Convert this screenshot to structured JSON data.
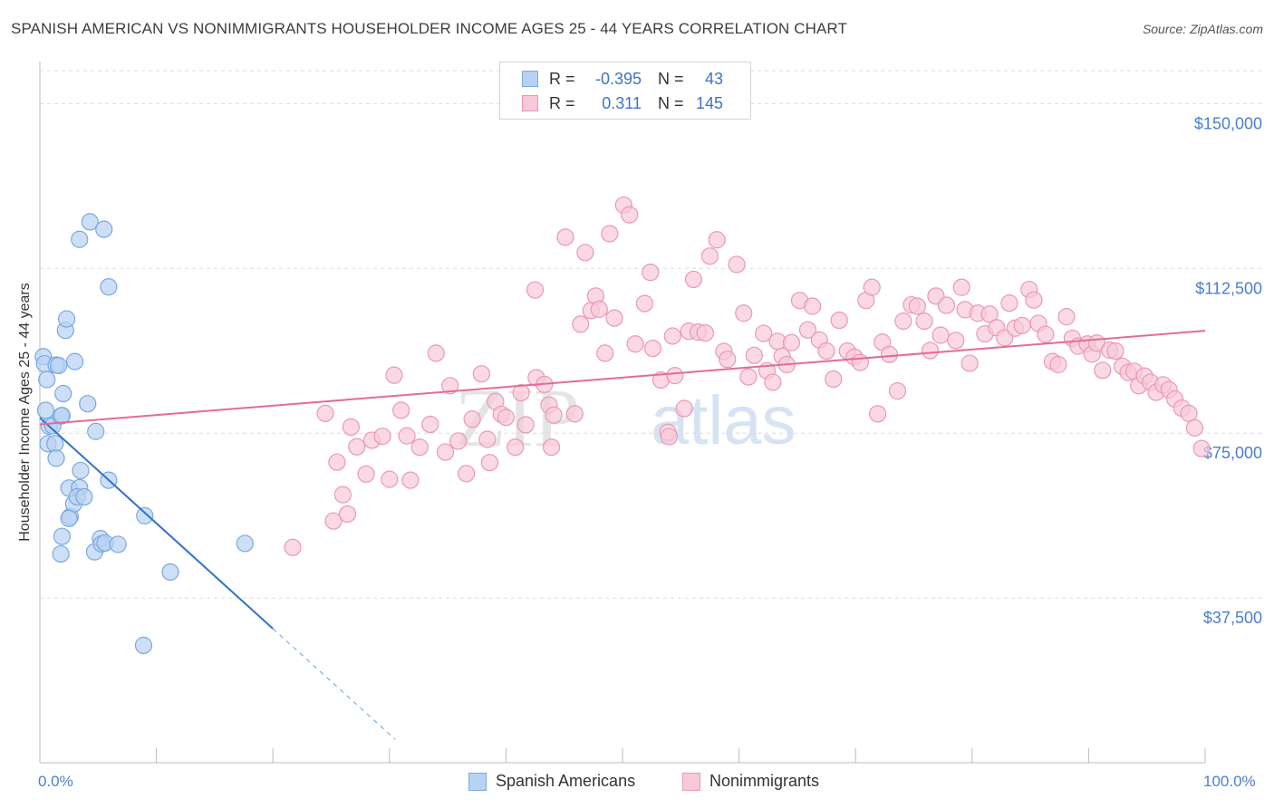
{
  "title": "SPANISH AMERICAN VS NONIMMIGRANTS HOUSEHOLDER INCOME AGES 25 - 44 YEARS CORRELATION CHART",
  "source": "Source: ZipAtlas.com",
  "watermark": {
    "zip": "ZIP",
    "atlas": "atlas"
  },
  "colors": {
    "blue_fill": "#b8d2f2",
    "blue_stroke": "#7aa8e0",
    "blue_line": "#2f72d0",
    "pink_fill": "#f8c9d8",
    "pink_stroke": "#ea98b4",
    "pink_line": "#e46b94",
    "axis_label": "#4a7fd0",
    "grid": "#dcdcdc"
  },
  "legend_top": [
    {
      "label": "R =",
      "r": "-0.395",
      "n_label": "N =",
      "n": "43",
      "series": "blue"
    },
    {
      "label": "R =",
      "r": "0.311",
      "n_label": "N =",
      "n": "145",
      "series": "pink"
    }
  ],
  "legend_bottom": [
    {
      "label": "Spanish Americans",
      "series": "blue"
    },
    {
      "label": "Nonimmigrants",
      "series": "pink"
    }
  ],
  "chart_data": {
    "type": "scatter",
    "title": "SPANISH AMERICAN VS NONIMMIGRANTS HOUSEHOLDER INCOME AGES 25 - 44 YEARS CORRELATION CHART",
    "xlabel": "",
    "ylabel": "Householder Income Ages 25 - 44 years",
    "xlim": [
      0,
      100
    ],
    "ylim": [
      0,
      157500
    ],
    "x_tick_labels": [
      "0.0%",
      "100.0%"
    ],
    "y_ticks": [
      37500,
      75000,
      112500,
      150000
    ],
    "y_tick_labels": [
      "$37,500",
      "$75,000",
      "$112,500",
      "$150,000"
    ],
    "series": [
      {
        "name": "Spanish Americans",
        "color": "blue",
        "r": -0.395,
        "n": 43,
        "trend": {
          "x0": 0,
          "y0": 78500,
          "x1": 20,
          "y1": 30500,
          "dash_to_x": 30.5
        },
        "points": [
          [
            0.3,
            92400
          ],
          [
            0.4,
            90800
          ],
          [
            0.6,
            87200
          ],
          [
            0.5,
            80200
          ],
          [
            0.8,
            76600
          ],
          [
            0.7,
            72600
          ],
          [
            1.1,
            76700
          ],
          [
            1.3,
            72600
          ],
          [
            1.4,
            69300
          ],
          [
            1.4,
            90500
          ],
          [
            1.6,
            90400
          ],
          [
            1.8,
            78900
          ],
          [
            1.9,
            79000
          ],
          [
            2.0,
            84000
          ],
          [
            2.2,
            98400
          ],
          [
            2.3,
            101000
          ],
          [
            1.8,
            47500
          ],
          [
            1.9,
            51500
          ],
          [
            2.5,
            62500
          ],
          [
            2.6,
            56000
          ],
          [
            2.9,
            58900
          ],
          [
            3.0,
            91300
          ],
          [
            3.4,
            62600
          ],
          [
            3.5,
            66500
          ],
          [
            3.2,
            60500
          ],
          [
            3.8,
            60500
          ],
          [
            4.1,
            81700
          ],
          [
            4.3,
            123100
          ],
          [
            3.4,
            119100
          ],
          [
            4.8,
            75400
          ],
          [
            4.7,
            48000
          ],
          [
            5.2,
            51000
          ],
          [
            5.5,
            121400
          ],
          [
            5.9,
            108300
          ],
          [
            5.9,
            64300
          ],
          [
            5.3,
            49800
          ],
          [
            5.6,
            50000
          ],
          [
            6.7,
            49700
          ],
          [
            9.0,
            56200
          ],
          [
            11.2,
            43400
          ],
          [
            17.6,
            49900
          ],
          [
            8.9,
            26700
          ],
          [
            2.5,
            55600
          ]
        ]
      },
      {
        "name": "Nonimmigrants",
        "color": "pink",
        "r": 0.311,
        "n": 145,
        "trend": {
          "x0": 0,
          "y0": 77000,
          "x1": 100,
          "y1": 98300
        },
        "points": [
          [
            21.7,
            49000
          ],
          [
            24.5,
            79500
          ],
          [
            25.2,
            55000
          ],
          [
            25.5,
            68400
          ],
          [
            26.0,
            61000
          ],
          [
            26.4,
            56600
          ],
          [
            26.7,
            76400
          ],
          [
            27.2,
            71900
          ],
          [
            28.0,
            65700
          ],
          [
            28.5,
            73400
          ],
          [
            29.4,
            74300
          ],
          [
            30.0,
            64500
          ],
          [
            30.4,
            88200
          ],
          [
            31.0,
            80200
          ],
          [
            31.5,
            74400
          ],
          [
            31.8,
            64300
          ],
          [
            32.6,
            71800
          ],
          [
            33.5,
            77000
          ],
          [
            34.0,
            93200
          ],
          [
            34.8,
            70700
          ],
          [
            35.2,
            85800
          ],
          [
            35.9,
            73200
          ],
          [
            36.6,
            65800
          ],
          [
            37.1,
            78200
          ],
          [
            37.9,
            88500
          ],
          [
            38.4,
            73600
          ],
          [
            38.6,
            68300
          ],
          [
            39.1,
            82200
          ],
          [
            39.6,
            79300
          ],
          [
            40.0,
            78600
          ],
          [
            40.8,
            71800
          ],
          [
            41.3,
            84200
          ],
          [
            41.7,
            76900
          ],
          [
            42.5,
            107600
          ],
          [
            42.6,
            87600
          ],
          [
            43.3,
            86100
          ],
          [
            43.7,
            81400
          ],
          [
            43.9,
            71800
          ],
          [
            44.1,
            79100
          ],
          [
            45.1,
            119600
          ],
          [
            45.9,
            79400
          ],
          [
            46.4,
            99800
          ],
          [
            46.8,
            116100
          ],
          [
            47.3,
            102900
          ],
          [
            47.7,
            106200
          ],
          [
            48.0,
            103200
          ],
          [
            48.5,
            93200
          ],
          [
            48.9,
            120400
          ],
          [
            49.3,
            101200
          ],
          [
            50.1,
            126900
          ],
          [
            50.6,
            124700
          ],
          [
            51.1,
            95300
          ],
          [
            51.9,
            104500
          ],
          [
            52.4,
            111600
          ],
          [
            52.6,
            94300
          ],
          [
            53.3,
            87100
          ],
          [
            53.9,
            75200
          ],
          [
            54.0,
            74200
          ],
          [
            54.3,
            97100
          ],
          [
            54.5,
            88100
          ],
          [
            55.3,
            80600
          ],
          [
            55.7,
            98200
          ],
          [
            56.1,
            110000
          ],
          [
            56.5,
            98000
          ],
          [
            57.1,
            97800
          ],
          [
            57.5,
            115300
          ],
          [
            58.1,
            119000
          ],
          [
            58.7,
            93600
          ],
          [
            59.0,
            91800
          ],
          [
            59.8,
            113400
          ],
          [
            60.4,
            102300
          ],
          [
            60.8,
            87800
          ],
          [
            61.3,
            92700
          ],
          [
            62.1,
            97700
          ],
          [
            62.4,
            89200
          ],
          [
            62.9,
            86600
          ],
          [
            63.3,
            95900
          ],
          [
            63.7,
            92500
          ],
          [
            64.1,
            90600
          ],
          [
            64.5,
            95600
          ],
          [
            65.2,
            105200
          ],
          [
            65.9,
            98500
          ],
          [
            66.3,
            103900
          ],
          [
            66.9,
            96200
          ],
          [
            67.5,
            93700
          ],
          [
            68.1,
            87300
          ],
          [
            68.6,
            100700
          ],
          [
            69.3,
            93700
          ],
          [
            69.9,
            92300
          ],
          [
            70.4,
            91100
          ],
          [
            70.9,
            105200
          ],
          [
            71.4,
            108200
          ],
          [
            71.9,
            79400
          ],
          [
            72.3,
            95700
          ],
          [
            72.9,
            92900
          ],
          [
            73.6,
            84600
          ],
          [
            74.1,
            100500
          ],
          [
            74.8,
            104200
          ],
          [
            75.3,
            103900
          ],
          [
            75.9,
            100500
          ],
          [
            76.4,
            93800
          ],
          [
            76.9,
            106200
          ],
          [
            77.3,
            97300
          ],
          [
            77.8,
            104100
          ],
          [
            78.6,
            96100
          ],
          [
            79.1,
            108200
          ],
          [
            79.4,
            103100
          ],
          [
            79.8,
            90900
          ],
          [
            80.5,
            102300
          ],
          [
            81.1,
            97600
          ],
          [
            81.5,
            102100
          ],
          [
            82.1,
            99000
          ],
          [
            82.8,
            96700
          ],
          [
            83.2,
            104600
          ],
          [
            83.7,
            98900
          ],
          [
            84.3,
            99500
          ],
          [
            84.9,
            107700
          ],
          [
            85.3,
            105300
          ],
          [
            85.7,
            100000
          ],
          [
            86.3,
            97500
          ],
          [
            86.9,
            91300
          ],
          [
            87.4,
            90600
          ],
          [
            88.1,
            101500
          ],
          [
            88.6,
            96600
          ],
          [
            89.1,
            94800
          ],
          [
            89.9,
            95300
          ],
          [
            90.3,
            93000
          ],
          [
            90.7,
            95500
          ],
          [
            91.2,
            89300
          ],
          [
            91.8,
            93900
          ],
          [
            92.3,
            93700
          ],
          [
            92.9,
            90200
          ],
          [
            93.4,
            88800
          ],
          [
            93.9,
            89100
          ],
          [
            94.3,
            85800
          ],
          [
            94.8,
            88000
          ],
          [
            95.3,
            86600
          ],
          [
            95.8,
            84300
          ],
          [
            96.4,
            86000
          ],
          [
            96.9,
            84900
          ],
          [
            97.4,
            82800
          ],
          [
            98.0,
            80700
          ],
          [
            98.6,
            79500
          ],
          [
            99.1,
            76200
          ],
          [
            99.7,
            71500
          ]
        ]
      }
    ]
  }
}
